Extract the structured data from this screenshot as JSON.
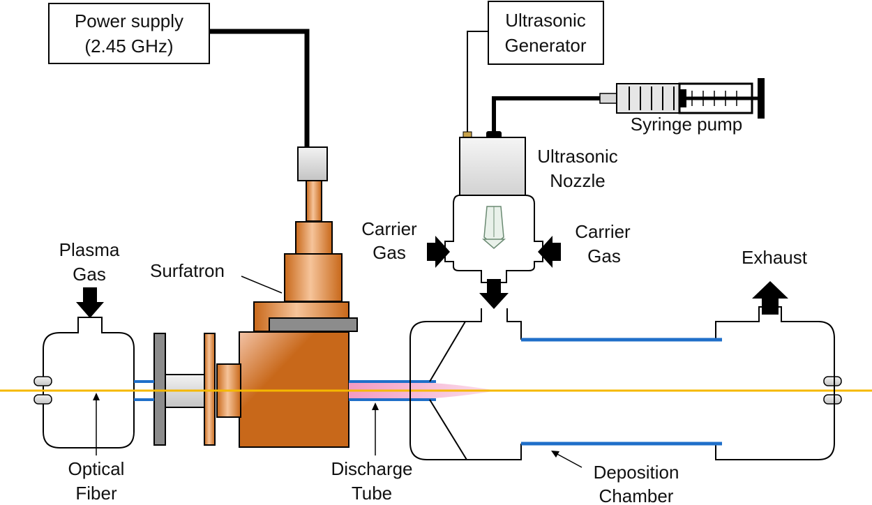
{
  "labels": {
    "power_supply": [
      "Power supply",
      "(2.45 GHz)"
    ],
    "ultrasonic_generator": [
      "Ultrasonic",
      "Generator"
    ],
    "syringe_pump": "Syringe pump",
    "ultrasonic_nozzle": [
      "Ultrasonic",
      "Nozzle"
    ],
    "carrier_gas_left": [
      "Carrier",
      "Gas"
    ],
    "carrier_gas_right": [
      "Carrier",
      "Gas"
    ],
    "plasma_gas": [
      "Plasma",
      "Gas"
    ],
    "surfatron": "Surfatron",
    "exhaust": "Exhaust",
    "optical_fiber": [
      "Optical",
      "Fiber"
    ],
    "discharge_tube": [
      "Discharge",
      "Tube"
    ],
    "deposition_chamber": [
      "Deposition",
      "Chamber"
    ]
  },
  "colors": {
    "copper": "#c8681a",
    "copper_light": "#f0b27a",
    "fiber": "#f5b800",
    "tube": "#1f6fc9",
    "plasma": "#f4a6c8",
    "steel": "#8c8c8c",
    "line": "#000000"
  }
}
